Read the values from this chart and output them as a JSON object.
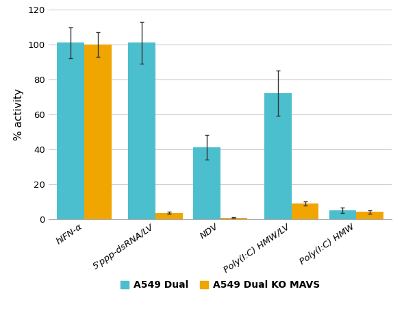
{
  "categories": [
    "hIFN-α",
    "5'ppp-dsRNA/LV",
    "NDV",
    "Poly(I:C) HMW/LV",
    "Poly(I:C) HMW"
  ],
  "a549_dual": [
    101,
    101,
    41,
    72,
    5
  ],
  "a549_dual_ko": [
    100,
    3.5,
    0.8,
    9,
    4
  ],
  "a549_dual_err": [
    9,
    12,
    7,
    13,
    1.5
  ],
  "a549_dual_ko_err": [
    7,
    0.5,
    0.3,
    1.2,
    1.0
  ],
  "bar_color_dual": "#4BBFCE",
  "bar_color_ko": "#F0A500",
  "ylabel": "% activity",
  "ylim": [
    0,
    120
  ],
  "yticks": [
    0,
    20,
    40,
    60,
    80,
    100,
    120
  ],
  "legend_dual": "A549 Dual",
  "legend_ko": "A549 Dual KO MAVS",
  "bar_width": 0.42,
  "background_color": "#ffffff",
  "grid_color": "#cccccc",
  "label_fontsize": 11,
  "tick_fontsize": 9.5
}
